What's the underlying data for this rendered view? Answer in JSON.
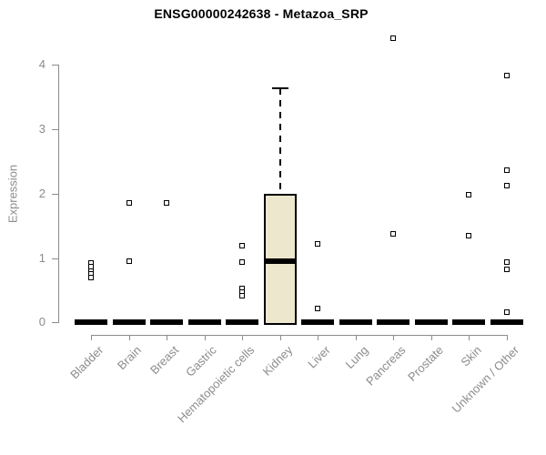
{
  "chart_data": {
    "type": "boxplot",
    "title": "ENSG00000242638 - Metazoa_SRP",
    "ylabel": "Expression",
    "xlabel": "",
    "ylim": [
      0,
      4
    ],
    "yticks": [
      0,
      1,
      2,
      3,
      4
    ],
    "grid": false,
    "legend": "none",
    "categories": [
      "Bladder",
      "Brain",
      "Breast",
      "Gastric",
      "Hematopoietic cells",
      "Kidney",
      "Liver",
      "Lung",
      "Pancreas",
      "Prostate",
      "Skin",
      "Unknown / Other"
    ],
    "boxes": [
      {
        "category": "Bladder",
        "q1": 0,
        "median": 0,
        "q3": 0,
        "whisker_low": 0,
        "whisker_high": 0,
        "outliers": [
          0.92,
          0.86,
          0.8,
          0.75,
          0.69
        ]
      },
      {
        "category": "Brain",
        "q1": 0,
        "median": 0,
        "q3": 0,
        "whisker_low": 0,
        "whisker_high": 0,
        "outliers": [
          1.85,
          0.95
        ]
      },
      {
        "category": "Breast",
        "q1": 0,
        "median": 0,
        "q3": 0,
        "whisker_low": 0,
        "whisker_high": 0,
        "outliers": [
          1.85
        ]
      },
      {
        "category": "Gastric",
        "q1": 0,
        "median": 0,
        "q3": 0,
        "whisker_low": 0,
        "whisker_high": 0,
        "outliers": []
      },
      {
        "category": "Hematopoietic cells",
        "q1": 0,
        "median": 0,
        "q3": 0,
        "whisker_low": 0,
        "whisker_high": 0,
        "outliers": [
          1.19,
          0.93,
          0.53,
          0.47,
          0.42
        ]
      },
      {
        "category": "Kidney",
        "q1": 0,
        "median": 0.95,
        "q3": 2.0,
        "whisker_low": 0,
        "whisker_high": 3.63,
        "outliers": []
      },
      {
        "category": "Liver",
        "q1": 0,
        "median": 0,
        "q3": 0,
        "whisker_low": 0,
        "whisker_high": 0,
        "outliers": [
          1.22,
          0.21
        ]
      },
      {
        "category": "Lung",
        "q1": 0,
        "median": 0,
        "q3": 0,
        "whisker_low": 0,
        "whisker_high": 0,
        "outliers": []
      },
      {
        "category": "Pancreas",
        "q1": 0,
        "median": 0,
        "q3": 0,
        "whisker_low": 0,
        "whisker_high": 0,
        "outliers": [
          4.41,
          1.37
        ]
      },
      {
        "category": "Prostate",
        "q1": 0,
        "median": 0,
        "q3": 0,
        "whisker_low": 0,
        "whisker_high": 0,
        "outliers": []
      },
      {
        "category": "Skin",
        "q1": 0,
        "median": 0,
        "q3": 0,
        "whisker_low": 0,
        "whisker_high": 0,
        "outliers": [
          1.98,
          1.34
        ]
      },
      {
        "category": "Unknown / Other",
        "q1": 0,
        "median": 0,
        "q3": 0,
        "whisker_low": 0,
        "whisker_high": 0,
        "outliers": [
          3.83,
          2.36,
          2.12,
          0.93,
          0.83,
          0.16
        ]
      }
    ],
    "colors": {
      "box_fill": "#ece7cd",
      "box_border": "#000000",
      "median": "#000000",
      "outlier_fill": "#ffffff",
      "outlier_border": "#000000",
      "axis": "#8c8c8c",
      "title": "#000000",
      "background": "#ffffff"
    }
  }
}
